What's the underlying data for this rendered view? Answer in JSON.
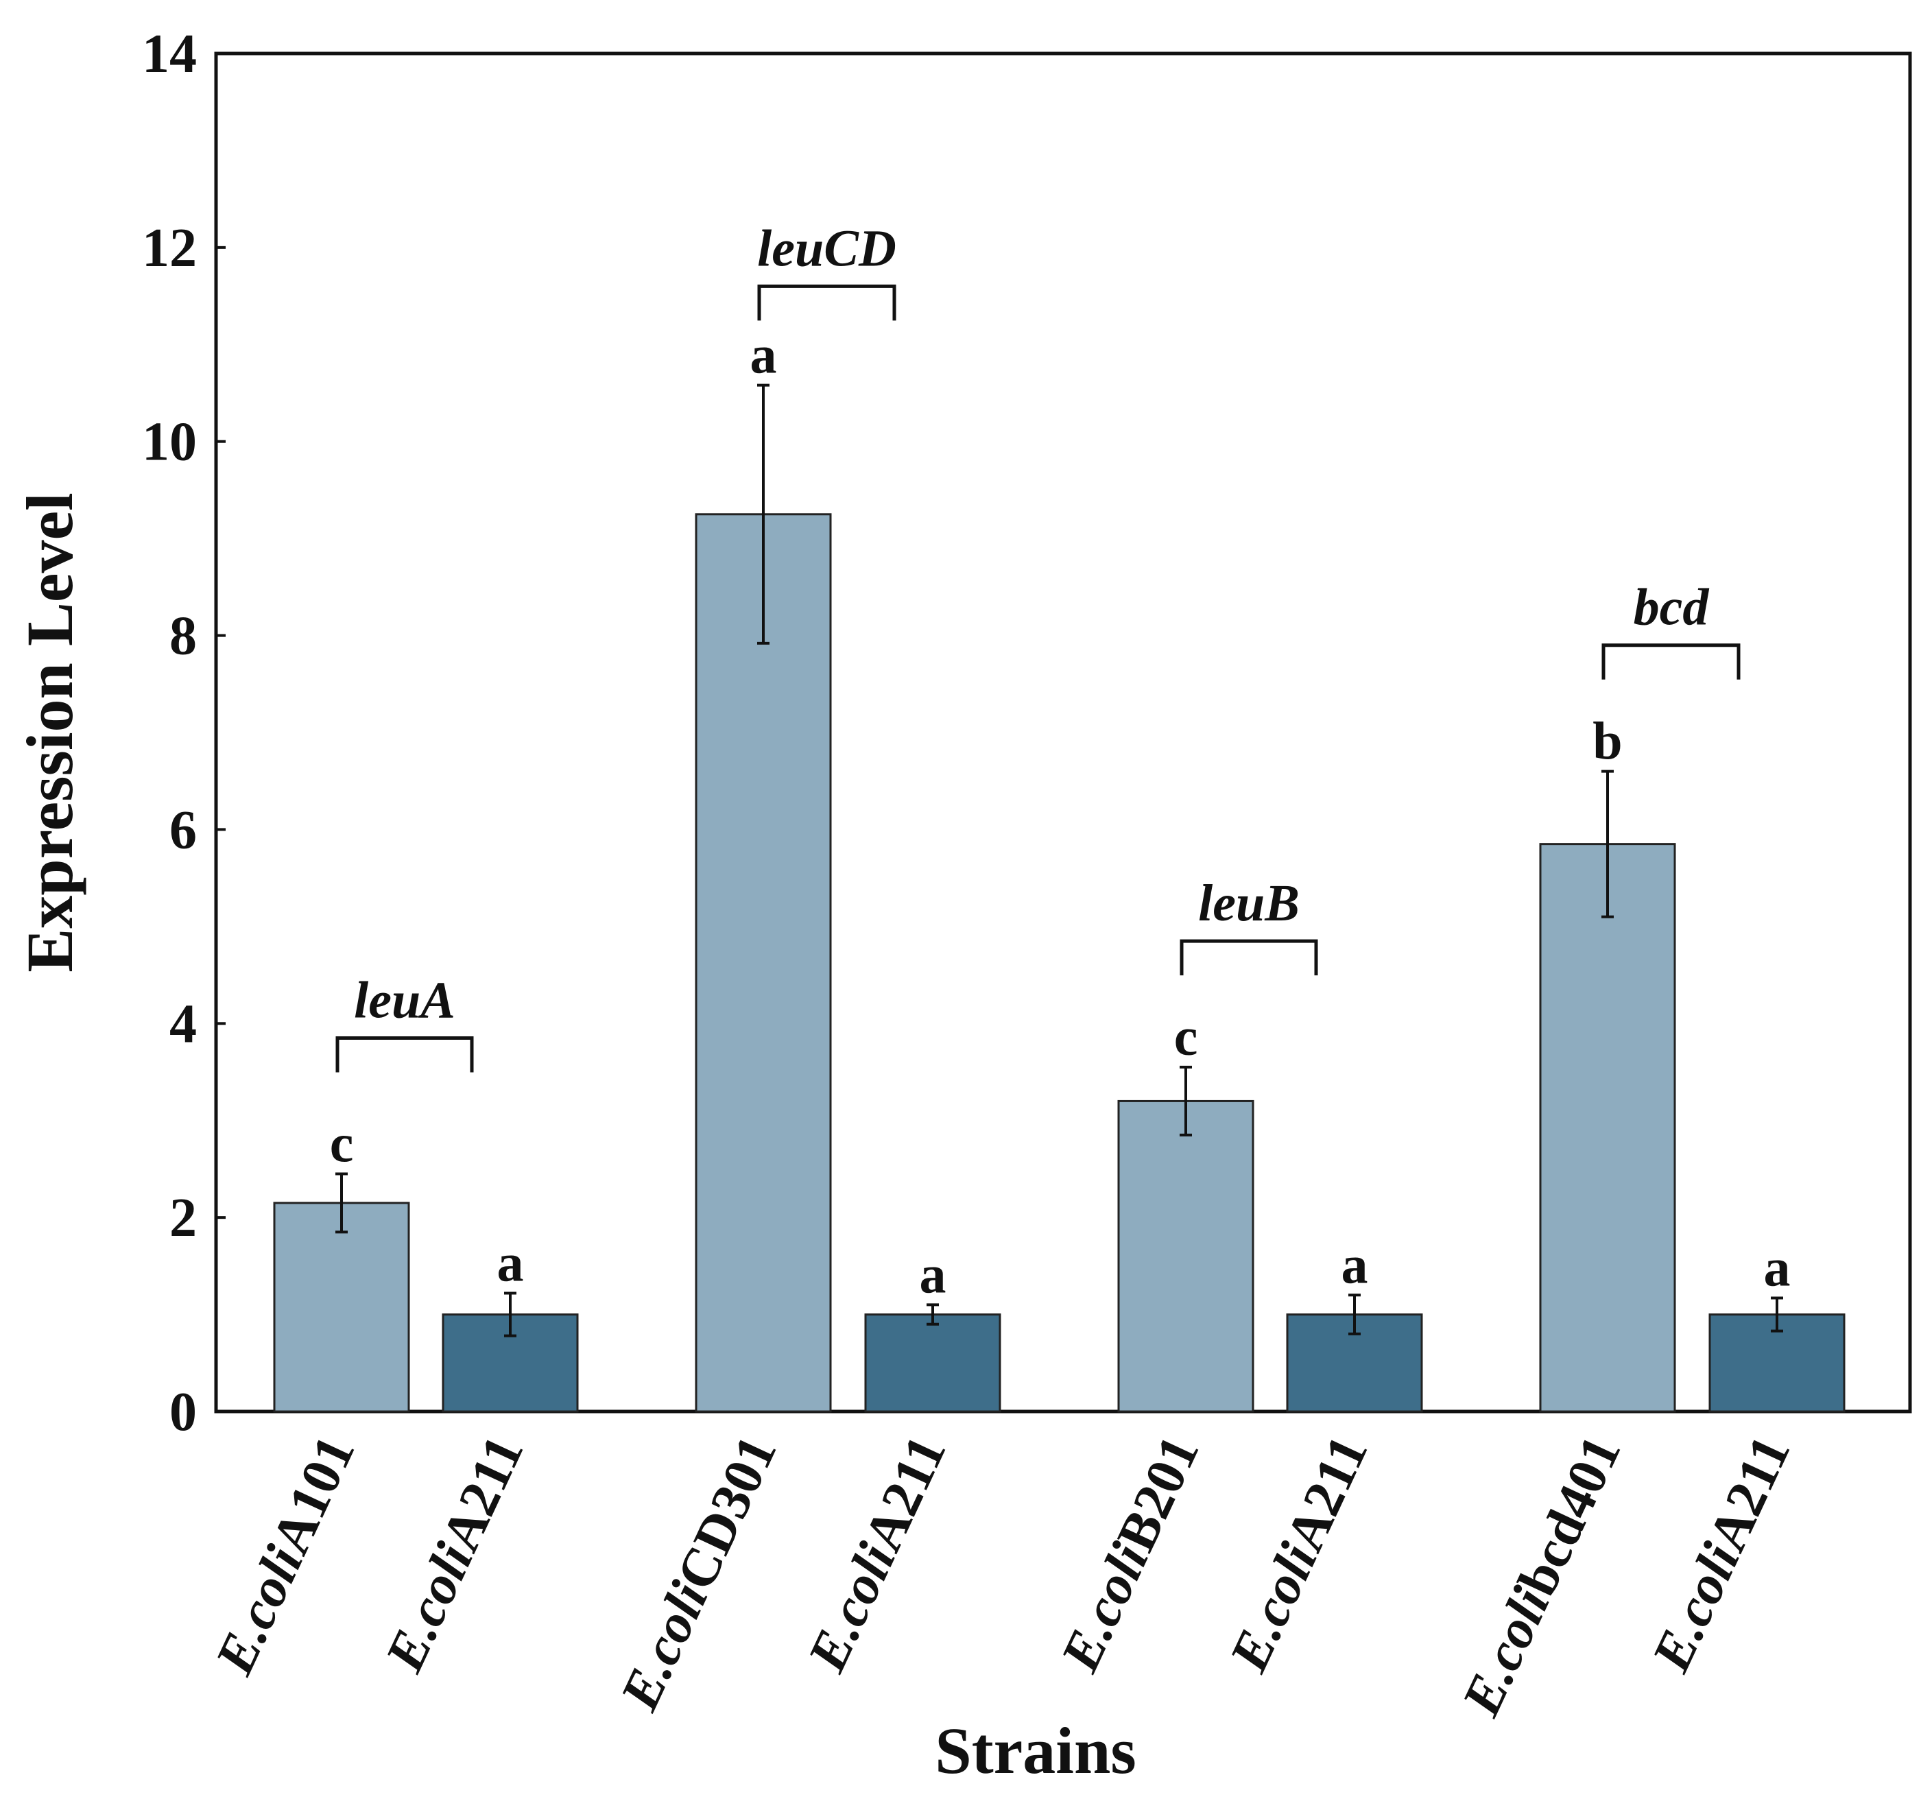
{
  "chart_data": {
    "type": "bar",
    "title": "",
    "xlabel": "Strains",
    "ylabel": "Expression Level",
    "ylim": [
      0,
      14
    ],
    "yticks": [
      0,
      2,
      4,
      6,
      8,
      10,
      12,
      14
    ],
    "grid": false,
    "colors": {
      "treated": "#8EACBF",
      "control": "#3E6E8A",
      "error": "#111111"
    },
    "categories": [
      {
        "italic": "E.coli",
        "rest": "A101",
        "full": "E.coliA101"
      },
      {
        "italic": "E.coli",
        "rest": "A211",
        "full": "E.coliA211"
      },
      {
        "italic": "E.coli",
        "rest": "CD301",
        "full": "E.coliCD301"
      },
      {
        "italic": "E.coli",
        "rest": "A211",
        "full": "E.coliA211"
      },
      {
        "italic": "E.coli",
        "rest": "B201",
        "full": "E.coliB201"
      },
      {
        "italic": "E.coli",
        "rest": "A211",
        "full": "E.coliA211"
      },
      {
        "italic": "E.coli",
        "rest": "bcd401",
        "full": "E.colibcd401"
      },
      {
        "italic": "E.coli",
        "rest": "A211",
        "full": "E.coliA211"
      }
    ],
    "values": [
      2.15,
      1.0,
      9.25,
      1.0,
      3.2,
      1.0,
      5.85,
      1.0
    ],
    "errors": [
      0.3,
      0.22,
      1.33,
      0.1,
      0.35,
      0.2,
      0.75,
      0.17
    ],
    "bar_kind": [
      "treated",
      "control",
      "treated",
      "control",
      "treated",
      "control",
      "treated",
      "control"
    ],
    "significance": [
      "c",
      "a",
      "a",
      "a",
      "c",
      "a",
      "b",
      "a"
    ],
    "gene_groups": [
      {
        "label": "leuA",
        "bars": [
          0,
          1
        ],
        "level": 3.85
      },
      {
        "label": "leuCD",
        "bars": [
          2,
          3
        ],
        "level": 11.6
      },
      {
        "label": "leuB",
        "bars": [
          4,
          5
        ],
        "level": 4.85
      },
      {
        "label": "bcd",
        "bars": [
          6,
          7
        ],
        "level": 7.9
      }
    ]
  }
}
